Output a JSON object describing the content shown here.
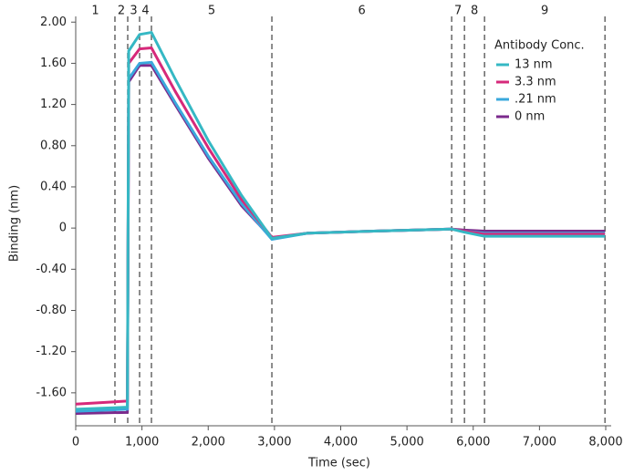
{
  "chart_data": {
    "type": "line",
    "x_label": "Time (sec)",
    "y_label": "Binding (nm)",
    "xlim": [
      0,
      8000
    ],
    "ylim": [
      -1.92,
      2.02
    ],
    "xticks": [
      0,
      {
        "value": 1000,
        "label": "1,000"
      },
      {
        "value": 2000,
        "label": "2,000"
      },
      {
        "value": 3000,
        "label": "3,000"
      },
      {
        "value": 4000,
        "label": "4,000"
      },
      {
        "value": 5000,
        "label": "5,000"
      },
      {
        "value": 6000,
        "label": "6,000"
      },
      {
        "value": 7000,
        "label": "7,000"
      },
      {
        "value": 8000,
        "label": "8,000"
      }
    ],
    "yticks": [
      {
        "value": 2,
        "label": "2.00"
      },
      {
        "value": 1.6,
        "label": "1.60"
      },
      {
        "value": 1.2,
        "label": "1.20"
      },
      {
        "value": 0.8,
        "label": "0.80"
      },
      {
        "value": 0.4,
        "label": "0.40"
      },
      0,
      {
        "value": -0.4,
        "label": "-0.40"
      },
      {
        "value": -0.8,
        "label": "-0.80"
      },
      {
        "value": -1.2,
        "label": "-1.20"
      },
      {
        "value": -1.6,
        "label": "-1.60"
      }
    ],
    "phases": {
      "boundaries": [
        592,
        785,
        964,
        1143,
        2961,
        5675,
        5868,
        6171,
        7989
      ],
      "labels": [
        "1",
        "2",
        "3",
        "4",
        "5",
        "6",
        "7",
        "8",
        "9"
      ]
    },
    "legend_title": "Antibody Conc.",
    "legend_position": "upper right",
    "x": [
      0,
      780,
      800,
      964,
      1143,
      1500,
      2000,
      2500,
      2961,
      3500,
      4500,
      5675,
      5868,
      6171,
      7000,
      7989
    ],
    "series": [
      {
        "name": "13 nm",
        "color": "#35b8c4",
        "values": [
          -1.76,
          -1.74,
          1.72,
          1.88,
          1.9,
          1.45,
          0.85,
          0.32,
          -0.1,
          -0.05,
          -0.03,
          -0.01,
          -0.04,
          -0.08,
          -0.08,
          -0.08
        ]
      },
      {
        "name": "3.3 nm",
        "color": "#d6297a",
        "values": [
          -1.71,
          -1.68,
          1.6,
          1.74,
          1.75,
          1.33,
          0.78,
          0.28,
          -0.09,
          -0.05,
          -0.03,
          -0.01,
          -0.03,
          -0.06,
          -0.06,
          -0.06
        ]
      },
      {
        "name": ".21 nm",
        "color": "#3aa8dc",
        "values": [
          -1.78,
          -1.76,
          1.45,
          1.6,
          1.61,
          1.22,
          0.7,
          0.24,
          -0.11,
          -0.05,
          -0.03,
          -0.01,
          -0.03,
          -0.05,
          -0.05,
          -0.05
        ]
      },
      {
        "name": "0 nm",
        "color": "#7b2a8c",
        "values": [
          -1.8,
          -1.79,
          1.42,
          1.58,
          1.58,
          1.2,
          0.68,
          0.22,
          -0.1,
          -0.05,
          -0.03,
          -0.01,
          -0.02,
          -0.03,
          -0.03,
          -0.03
        ]
      }
    ]
  }
}
